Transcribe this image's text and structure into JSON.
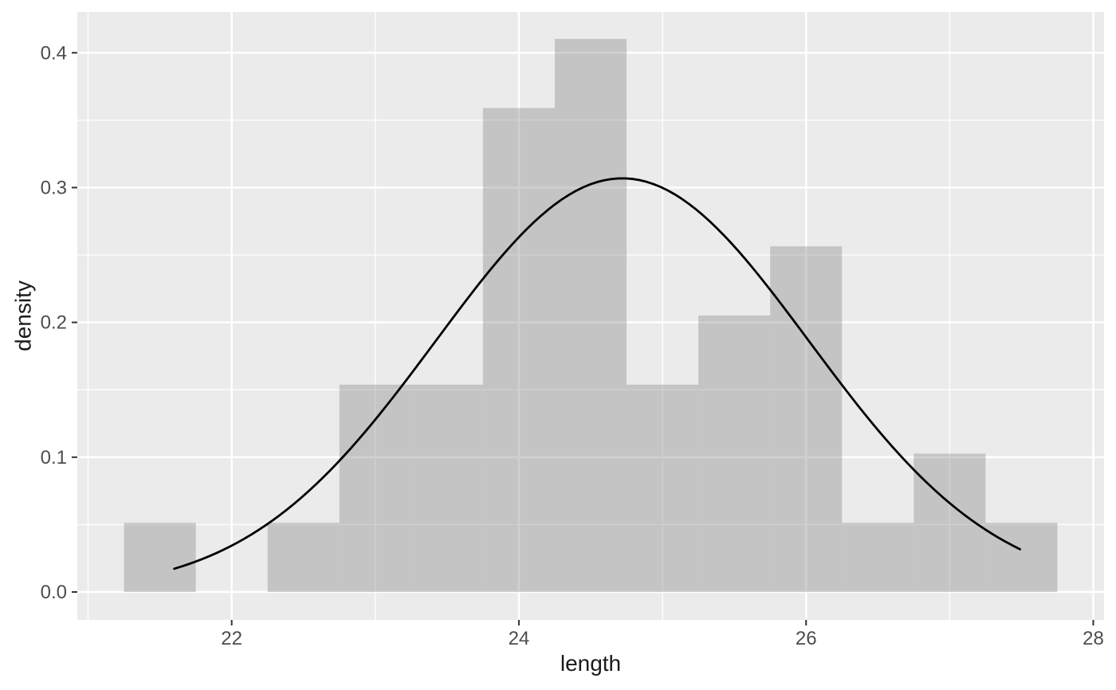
{
  "chart_data": {
    "type": "histogram",
    "title": "",
    "xlabel": "length",
    "ylabel": "density",
    "legend": "none",
    "grid": true,
    "x_ticks": [
      {
        "value": 22,
        "label": "22"
      },
      {
        "value": 24,
        "label": "24"
      },
      {
        "value": 26,
        "label": "26"
      },
      {
        "value": 28,
        "label": "28"
      }
    ],
    "y_ticks": [
      {
        "value": 0.0,
        "label": "0.0"
      },
      {
        "value": 0.1,
        "label": "0.1"
      },
      {
        "value": 0.2,
        "label": "0.2"
      },
      {
        "value": 0.3,
        "label": "0.3"
      },
      {
        "value": 0.4,
        "label": "0.4"
      }
    ],
    "x_minor": [
      21,
      23,
      25,
      27
    ],
    "y_minor": [
      0.05,
      0.15,
      0.25,
      0.35
    ],
    "xlim": [
      20.925,
      28.075
    ],
    "ylim": [
      -0.0207,
      0.4303
    ],
    "bin_width": 0.5,
    "bins": [
      {
        "x0": 21.25,
        "x1": 21.75,
        "density": 0.0513
      },
      {
        "x0": 21.75,
        "x1": 22.25,
        "density": 0
      },
      {
        "x0": 22.25,
        "x1": 22.75,
        "density": 0.0513
      },
      {
        "x0": 22.75,
        "x1": 23.25,
        "density": 0.1538
      },
      {
        "x0": 23.25,
        "x1": 23.75,
        "density": 0.1538
      },
      {
        "x0": 23.75,
        "x1": 24.25,
        "density": 0.359
      },
      {
        "x0": 24.25,
        "x1": 24.75,
        "density": 0.4103
      },
      {
        "x0": 24.75,
        "x1": 25.25,
        "density": 0.1538
      },
      {
        "x0": 25.25,
        "x1": 25.75,
        "density": 0.2051
      },
      {
        "x0": 25.75,
        "x1": 26.25,
        "density": 0.2564
      },
      {
        "x0": 26.25,
        "x1": 26.75,
        "density": 0.0513
      },
      {
        "x0": 26.75,
        "x1": 27.25,
        "density": 0.1026
      },
      {
        "x0": 27.25,
        "x1": 27.75,
        "density": 0.0513
      }
    ],
    "curve": {
      "type": "normal",
      "mean": 24.72,
      "sd": 1.3,
      "x_from": 21.6,
      "x_to": 27.49,
      "peak_density": 0.307
    },
    "colors": {
      "panel_bg": "#EBEBEB",
      "grid": "#FFFFFF",
      "bar_fill": "#8A8A8A",
      "bar_alpha": 0.4,
      "curve": "#000000",
      "tick_mark": "#333333",
      "tick_label": "#4D4D4D",
      "axis_title": "#1A1A1A"
    }
  }
}
